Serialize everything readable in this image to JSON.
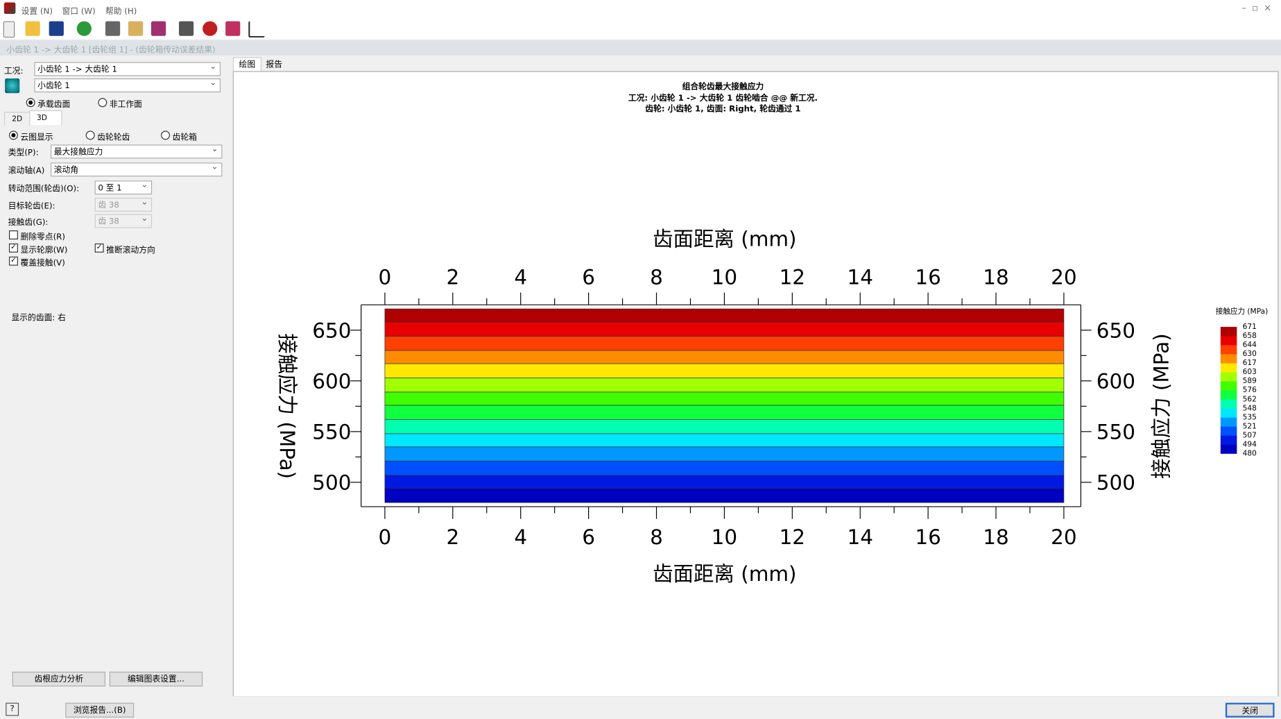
{
  "menu": [
    "设置 (N)",
    "窗口 (W)",
    "帮助 (H)"
  ],
  "window_title": "小齿轮 1 -> 大齿轮 1 [齿轮组 1] - (齿轮箱传动误差结果)",
  "left_panel": {
    "condition_label": "工况:",
    "condition_value": "小齿轮 1 -> 大齿轮 1",
    "gear_value": "小齿轮 1",
    "flank_radios": [
      {
        "label": "承载齿面",
        "checked": true
      },
      {
        "label": "非工作面",
        "checked": false
      }
    ],
    "tabs": [
      "2D",
      "3D"
    ],
    "display_radios": [
      {
        "label": "云图显示",
        "checked": true
      },
      {
        "label": "齿轮轮齿",
        "checked": false
      },
      {
        "label": "齿轮箱",
        "checked": false
      }
    ],
    "fields": [
      {
        "label": "类型(P):",
        "value": "最大接触应力"
      },
      {
        "label": "滚动轴(A)",
        "value": "滚动角"
      },
      {
        "label": "转动范围(轮齿)(O):",
        "value": "0 至 1"
      },
      {
        "label": "目标轮齿(E):",
        "value": "齿 38"
      },
      {
        "label": "接触齿(G):",
        "value": "齿 38"
      }
    ],
    "checkboxes": [
      {
        "label": "删除零点(R)",
        "checked": false
      },
      {
        "label": "显示轮廓(W)",
        "checked": true
      },
      {
        "label": "推断滚动方向",
        "checked": true
      },
      {
        "label": "覆盖接触(V)",
        "checked": true
      }
    ],
    "shown_flank": "显示的齿面: 右",
    "buttons": [
      "齿根应力分析",
      "编辑图表设置..."
    ]
  },
  "view_tabs": [
    "绘图",
    "报告"
  ],
  "chart_data": {
    "type": "contour",
    "title": "组合轮齿最大接触应力",
    "subtitle": [
      "工况: 小齿轮 1 -> 大齿轮 1 齿轮啮合 @@ 新工况.",
      "齿轮: 小齿轮 1, 齿面: Right, 轮齿通过 1"
    ],
    "x_label": "齿面距离 (mm)",
    "y_label": "接触应力 (MPa)",
    "colorbar_label": "接触应力 (MPa)",
    "x": [
      0,
      20
    ],
    "levels": [
      480,
      494,
      507,
      521,
      535,
      548,
      562,
      576,
      589,
      603,
      617,
      630,
      644,
      658,
      671
    ],
    "band_colors": [
      "#0000c0",
      "#0018e0",
      "#0050ff",
      "#0098ff",
      "#00e8ff",
      "#00ffb0",
      "#10ff40",
      "#40ff00",
      "#a0ff00",
      "#ffe800",
      "#ff8c00",
      "#ff4000",
      "#e80000",
      "#b00000"
    ],
    "xlim": [
      -0.7,
      20.5
    ],
    "ylim": [
      476,
      675
    ],
    "xticks": [
      0,
      2,
      4,
      6,
      8,
      10,
      12,
      14,
      16,
      18,
      20
    ],
    "xminorticks": [
      1,
      3,
      5,
      7,
      9,
      11,
      13,
      15,
      17,
      19
    ],
    "yticks": [
      500,
      550,
      600,
      650
    ],
    "yminorticks": [
      525,
      575,
      625
    ]
  },
  "footer": {
    "report_button": "浏览报告...(B)",
    "close_button": "关闭"
  }
}
